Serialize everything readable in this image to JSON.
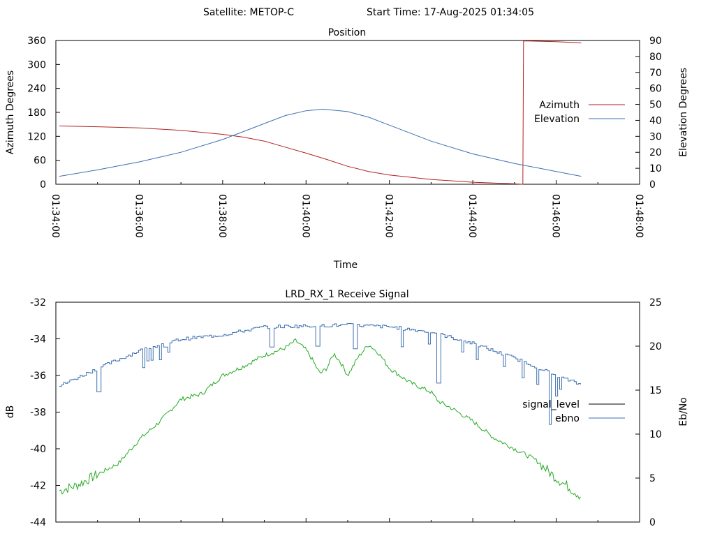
{
  "header": {
    "satellite_label": "Satellite: METOP-C",
    "start_time_label": "Start Time: 17-Aug-2025 01:34:05"
  },
  "chart_data": [
    {
      "type": "line",
      "title": "Position",
      "xlabel": "Time",
      "ylabel": "Azimuth Degrees",
      "y2label": "Elevation Degrees",
      "xlim": [
        "01:34:00",
        "01:48:00"
      ],
      "ylim": [
        0,
        360
      ],
      "y2lim": [
        0,
        90
      ],
      "x_ticks": [
        "01:34:00",
        "01:36:00",
        "01:38:00",
        "01:40:00",
        "01:42:00",
        "01:44:00",
        "01:46:00",
        "01:48:00"
      ],
      "y_ticks": [
        0,
        60,
        120,
        180,
        240,
        300,
        360
      ],
      "y2_ticks": [
        0,
        10,
        20,
        30,
        40,
        50,
        60,
        70,
        80,
        90
      ],
      "grid": false,
      "legend_position": "right",
      "colors": {
        "azimuth": "#b22222",
        "elevation": "#3d6fb0"
      },
      "series": [
        {
          "name": "Azimuth",
          "axis": "y",
          "points": [
            [
              "01:34:05",
              146
            ],
            [
              "01:35:00",
              144
            ],
            [
              "01:36:00",
              141
            ],
            [
              "01:37:00",
              135
            ],
            [
              "01:38:00",
              125
            ],
            [
              "01:38:30",
              118
            ],
            [
              "01:39:00",
              108
            ],
            [
              "01:39:30",
              93
            ],
            [
              "01:40:00",
              78
            ],
            [
              "01:40:30",
              62
            ],
            [
              "01:41:00",
              45
            ],
            [
              "01:41:30",
              32
            ],
            [
              "01:42:00",
              23
            ],
            [
              "01:43:00",
              12
            ],
            [
              "01:44:00",
              5
            ],
            [
              "01:45:00",
              1
            ],
            [
              "01:45:12",
              0
            ],
            [
              "01:45:13",
              359
            ],
            [
              "01:46:00",
              357
            ],
            [
              "01:46:36",
              354
            ]
          ]
        },
        {
          "name": "Elevation",
          "axis": "y2",
          "points": [
            [
              "01:34:05",
              5
            ],
            [
              "01:35:00",
              9
            ],
            [
              "01:36:00",
              14
            ],
            [
              "01:37:00",
              20
            ],
            [
              "01:38:00",
              28
            ],
            [
              "01:38:30",
              33
            ],
            [
              "01:39:00",
              38
            ],
            [
              "01:39:30",
              43
            ],
            [
              "01:40:00",
              46
            ],
            [
              "01:40:24",
              47
            ],
            [
              "01:41:00",
              45.5
            ],
            [
              "01:41:30",
              42
            ],
            [
              "01:42:00",
              37
            ],
            [
              "01:43:00",
              27
            ],
            [
              "01:44:00",
              19
            ],
            [
              "01:45:00",
              13
            ],
            [
              "01:46:00",
              8
            ],
            [
              "01:46:36",
              5
            ]
          ]
        }
      ]
    },
    {
      "type": "line",
      "title": "LRD_RX_1 Receive Signal",
      "ylabel": "dB",
      "y2label": "Eb/No",
      "ylim": [
        -44,
        -32
      ],
      "y2lim": [
        0,
        25
      ],
      "y_ticks": [
        -44,
        -42,
        -40,
        -38,
        -36,
        -34,
        -32
      ],
      "y2_ticks": [
        0,
        5,
        10,
        15,
        20,
        25
      ],
      "grid": false,
      "legend_position": "right",
      "colors": {
        "signal_level": "#000000",
        "ebno": "#3d6fb0",
        "trace_green": "#22aa22"
      },
      "series": [
        {
          "name": "signal_level",
          "axis": "y",
          "color": "#22aa22",
          "points": [
            [
              "01:34:05",
              -42.3
            ],
            [
              "01:34:30",
              -42.0
            ],
            [
              "01:35:00",
              -41.4
            ],
            [
              "01:35:30",
              -40.8
            ],
            [
              "01:36:00",
              -39.5
            ],
            [
              "01:36:30",
              -38.5
            ],
            [
              "01:37:00",
              -37.3
            ],
            [
              "01:37:30",
              -37.0
            ],
            [
              "01:38:00",
              -36.0
            ],
            [
              "01:38:30",
              -35.5
            ],
            [
              "01:39:00",
              -34.9
            ],
            [
              "01:39:30",
              -34.5
            ],
            [
              "01:39:45",
              -34.1
            ],
            [
              "01:40:00",
              -34.6
            ],
            [
              "01:40:10",
              -35.2
            ],
            [
              "01:40:20",
              -35.9
            ],
            [
              "01:40:30",
              -35.6
            ],
            [
              "01:40:40",
              -34.8
            ],
            [
              "01:40:50",
              -35.3
            ],
            [
              "01:41:00",
              -36.0
            ],
            [
              "01:41:15",
              -35.0
            ],
            [
              "01:41:30",
              -34.3
            ],
            [
              "01:41:45",
              -34.8
            ],
            [
              "01:42:00",
              -35.6
            ],
            [
              "01:42:30",
              -36.4
            ],
            [
              "01:43:00",
              -36.9
            ],
            [
              "01:43:10",
              -37.4
            ],
            [
              "01:43:30",
              -37.8
            ],
            [
              "01:44:00",
              -38.5
            ],
            [
              "01:44:30",
              -39.4
            ],
            [
              "01:45:00",
              -40.0
            ],
            [
              "01:45:30",
              -40.6
            ],
            [
              "01:46:00",
              -41.6
            ],
            [
              "01:46:36",
              -42.6
            ]
          ]
        },
        {
          "name": "ebno",
          "axis": "y2",
          "color": "#3d6fb0",
          "points": [
            [
              "01:34:05",
              15.5
            ],
            [
              "01:35:00",
              17.5
            ],
            [
              "01:35:30",
              18.5
            ],
            [
              "01:36:00",
              19.5
            ],
            [
              "01:37:00",
              20.8
            ],
            [
              "01:38:00",
              21.3
            ],
            [
              "01:39:00",
              22.2
            ],
            [
              "01:40:00",
              22.3
            ],
            [
              "01:41:00",
              22.4
            ],
            [
              "01:42:00",
              22.2
            ],
            [
              "01:43:00",
              21.6
            ],
            [
              "01:44:00",
              20.3
            ],
            [
              "01:45:00",
              18.6
            ],
            [
              "01:45:30",
              17.7
            ],
            [
              "01:46:00",
              16.6
            ],
            [
              "01:46:36",
              15.6
            ]
          ],
          "dips": [
            [
              "01:35:00",
              14.8
            ],
            [
              "01:36:36",
              19.9
            ],
            [
              "01:39:10",
              19.9
            ],
            [
              "01:40:15",
              20.0
            ],
            [
              "01:41:10",
              19.7
            ],
            [
              "01:43:10",
              15.8
            ],
            [
              "01:45:50",
              11.1
            ]
          ]
        }
      ]
    }
  ]
}
